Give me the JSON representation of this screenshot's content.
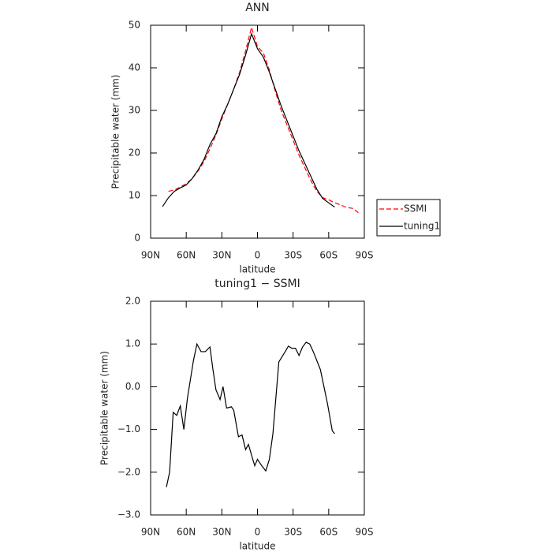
{
  "chart_data": [
    {
      "type": "line",
      "title": "ANN",
      "x_label": "latitude",
      "y_label": "Precipitable water  (mm)",
      "xlim": [
        90,
        -90
      ],
      "xticks": [
        {
          "value": 90,
          "label": "90N"
        },
        {
          "value": 60,
          "label": "60N"
        },
        {
          "value": 30,
          "label": "30N"
        },
        0,
        {
          "value": -30,
          "label": "30S"
        },
        {
          "value": -60,
          "label": "60S"
        },
        {
          "value": -90,
          "label": "90S"
        }
      ],
      "ylim": [
        0,
        50
      ],
      "yticks": [
        0,
        10,
        20,
        30,
        40,
        50
      ],
      "legend": "right",
      "x": [
        80,
        75,
        70,
        65,
        60,
        55,
        50,
        45,
        40,
        35,
        30,
        25,
        20,
        15,
        10,
        5,
        0,
        -5,
        -10,
        -15,
        -20,
        -25,
        -30,
        -35,
        -40,
        -45,
        -50,
        -55,
        -60,
        -65,
        -70,
        -75,
        -80,
        -85
      ],
      "series": [
        {
          "name": "SSMI",
          "color": "#ff0000",
          "dashed": true,
          "values": [
            null,
            11,
            11.3,
            12,
            12.8,
            14,
            15.8,
            18,
            21,
            24.2,
            28,
            31.5,
            35,
            39,
            44,
            49.5,
            45,
            43.5,
            39.5,
            34.5,
            30,
            26.5,
            23,
            19.5,
            16.5,
            13.5,
            11,
            9.5,
            9,
            8.3,
            7.8,
            7.2,
            7,
            6
          ]
        },
        {
          "name": "tuning1",
          "color": "#000000",
          "dashed": false,
          "values": [
            7.4,
            9.5,
            11,
            11.8,
            12.5,
            14,
            16,
            18.5,
            22,
            24.5,
            28.5,
            31.5,
            35,
            38.5,
            43,
            48,
            44.5,
            42.5,
            39,
            35,
            31,
            27.5,
            24,
            20.5,
            17.5,
            14.5,
            11.5,
            9.3,
            8.3,
            7.3,
            null,
            null,
            null,
            null
          ]
        }
      ]
    },
    {
      "type": "line",
      "title": "tuning1 − SSMI",
      "x_label": "latitude",
      "y_label": "Precipitable water  (mm)",
      "xlim": [
        90,
        -90
      ],
      "xticks": [
        {
          "value": 90,
          "label": "90N"
        },
        {
          "value": 60,
          "label": "60N"
        },
        {
          "value": 30,
          "label": "30N"
        },
        0,
        {
          "value": -30,
          "label": "30S"
        },
        {
          "value": -60,
          "label": "60S"
        },
        {
          "value": -90,
          "label": "90S"
        }
      ],
      "ylim": [
        -3,
        2
      ],
      "yticks": [
        {
          "value": -3,
          "label": "−3.0"
        },
        {
          "value": -2,
          "label": "−2.0"
        },
        {
          "value": -1,
          "label": "−1.0"
        },
        {
          "value": 0,
          "label": "0.0"
        },
        {
          "value": 1,
          "label": "1.0"
        },
        {
          "value": 2,
          "label": "2.0"
        }
      ],
      "x": [
        76.7,
        74,
        71,
        68,
        65,
        62,
        59,
        54,
        51,
        47.5,
        44,
        40,
        37.5,
        35,
        31.5,
        29,
        26,
        22,
        20,
        16,
        13,
        10,
        7.6,
        5,
        2.3,
        0,
        -3.6,
        -7,
        -10,
        -13,
        -18,
        -24,
        -26,
        -29,
        -32,
        -35,
        -38,
        -41,
        -44,
        -47,
        -53,
        -59,
        -63,
        -65
      ],
      "series": [
        {
          "color": "#000000",
          "dashed": false,
          "values": [
            -2.35,
            -2.0,
            -0.6,
            -0.67,
            -0.45,
            -1.0,
            -0.27,
            0.6,
            1.0,
            0.82,
            0.82,
            0.93,
            0.4,
            -0.07,
            -0.3,
            0,
            -0.5,
            -0.47,
            -0.55,
            -1.17,
            -1.13,
            -1.47,
            -1.35,
            -1.6,
            -1.85,
            -1.7,
            -1.85,
            -1.97,
            -1.7,
            -1.1,
            0.58,
            0.85,
            0.95,
            0.9,
            0.9,
            0.73,
            0.93,
            1.04,
            1.0,
            0.82,
            0.4,
            -0.4,
            -1.03,
            -1.1
          ]
        }
      ]
    }
  ]
}
